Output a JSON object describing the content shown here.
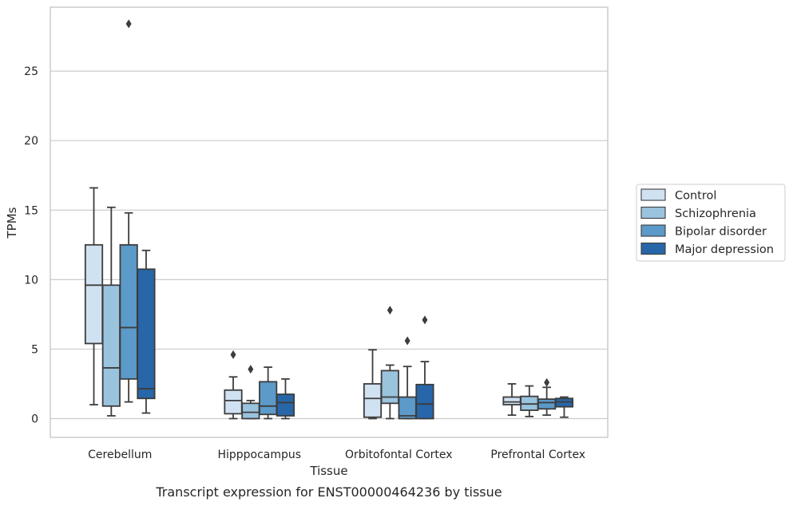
{
  "caption": "Transcript expression for ENST00000464236 by tissue",
  "chart_data": {
    "type": "box",
    "title": "",
    "xlabel": "Tissue",
    "ylabel": "TPMs",
    "categories": [
      "Cerebellum",
      "Hipppocampus",
      "Orbitofontal Cortex",
      "Prefrontal Cortex"
    ],
    "ylim": [
      -1.35,
      29.6
    ],
    "yticks": [
      0,
      5,
      10,
      15,
      20,
      25
    ],
    "grid": "horizontal",
    "legend_position": "right",
    "series": [
      {
        "name": "Control",
        "color": "#d0e1f2",
        "boxes": [
          {
            "whisker_low": 1.0,
            "q1": 5.4,
            "median": 9.6,
            "q3": 12.5,
            "whisker_high": 16.6,
            "outliers": []
          },
          {
            "whisker_low": 0.0,
            "q1": 0.35,
            "median": 1.3,
            "q3": 2.05,
            "whisker_high": 3.0,
            "outliers": [
              4.6
            ]
          },
          {
            "whisker_low": 0.0,
            "q1": 0.1,
            "median": 1.45,
            "q3": 2.5,
            "whisker_high": 4.95,
            "outliers": []
          },
          {
            "whisker_low": 0.25,
            "q1": 1.0,
            "median": 1.2,
            "q3": 1.55,
            "whisker_high": 2.5,
            "outliers": []
          }
        ]
      },
      {
        "name": "Schizophrenia",
        "color": "#9ac3de",
        "boxes": [
          {
            "whisker_low": 0.2,
            "q1": 0.9,
            "median": 3.65,
            "q3": 9.6,
            "whisker_high": 15.2,
            "outliers": []
          },
          {
            "whisker_low": 0.0,
            "q1": 0.0,
            "median": 0.45,
            "q3": 1.1,
            "whisker_high": 1.3,
            "outliers": [
              3.55
            ]
          },
          {
            "whisker_low": 0.0,
            "q1": 1.1,
            "median": 1.55,
            "q3": 3.45,
            "whisker_high": 3.85,
            "outliers": [
              7.8
            ]
          },
          {
            "whisker_low": 0.15,
            "q1": 0.6,
            "median": 1.05,
            "q3": 1.6,
            "whisker_high": 2.35,
            "outliers": []
          }
        ]
      },
      {
        "name": "Bipolar disorder",
        "color": "#5b9ac9",
        "boxes": [
          {
            "whisker_low": 1.2,
            "q1": 2.85,
            "median": 6.55,
            "q3": 12.5,
            "whisker_high": 14.8,
            "outliers": [
              28.4
            ]
          },
          {
            "whisker_low": 0.0,
            "q1": 0.3,
            "median": 0.9,
            "q3": 2.65,
            "whisker_high": 3.7,
            "outliers": []
          },
          {
            "whisker_low": 0.0,
            "q1": 0.0,
            "median": 0.2,
            "q3": 1.55,
            "whisker_high": 3.75,
            "outliers": [
              5.6
            ]
          },
          {
            "whisker_low": 0.25,
            "q1": 0.7,
            "median": 1.15,
            "q3": 1.4,
            "whisker_high": 2.25,
            "outliers": [
              2.6
            ]
          }
        ]
      },
      {
        "name": "Major depression",
        "color": "#2766a8",
        "boxes": [
          {
            "whisker_low": 0.4,
            "q1": 1.45,
            "median": 2.15,
            "q3": 10.75,
            "whisker_high": 12.1,
            "outliers": []
          },
          {
            "whisker_low": 0.0,
            "q1": 0.2,
            "median": 1.15,
            "q3": 1.75,
            "whisker_high": 2.85,
            "outliers": []
          },
          {
            "whisker_low": 0.0,
            "q1": 0.0,
            "median": 1.05,
            "q3": 2.45,
            "whisker_high": 4.1,
            "outliers": [
              7.1
            ]
          },
          {
            "whisker_low": 0.1,
            "q1": 0.85,
            "median": 1.2,
            "q3": 1.45,
            "whisker_high": 1.55,
            "outliers": []
          }
        ]
      }
    ]
  }
}
